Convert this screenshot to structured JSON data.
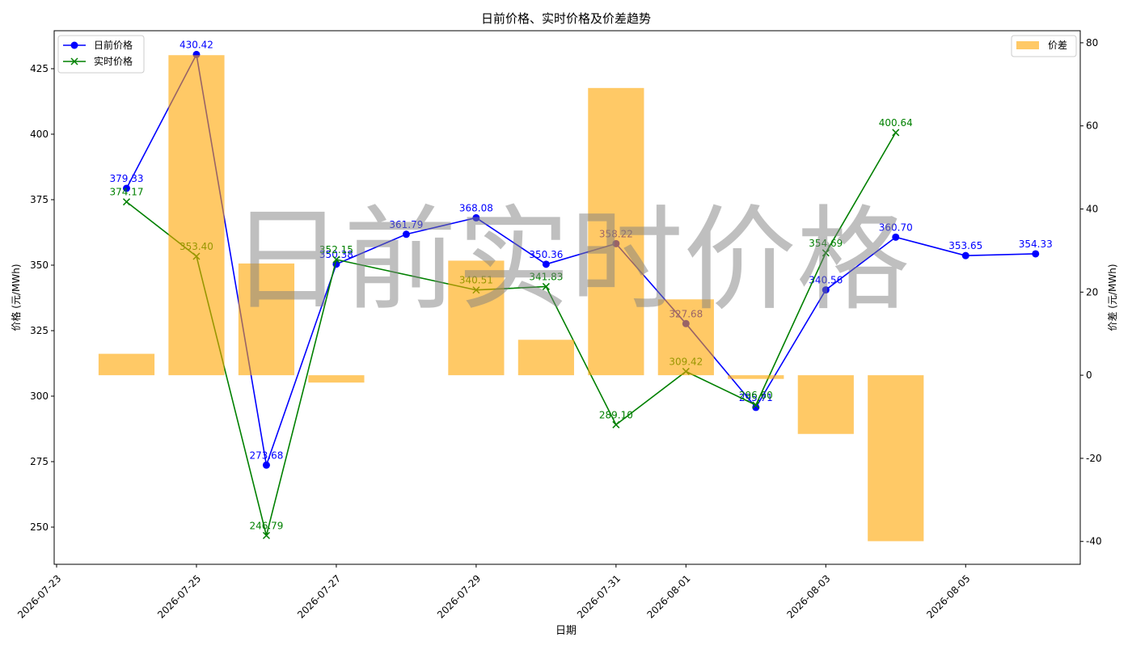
{
  "chart_data": {
    "type": "line-bar",
    "title": "日前价格、实时价格及价差趋势",
    "xlabel": "日期",
    "ylabel": "价格 (元/MWh)",
    "y2label": "价差 (元/MWh)",
    "watermark": "日前实时价格",
    "xlim": [
      "2026-07-22T23:10:00Z",
      "2026-08-06T15:20:00Z"
    ],
    "xticks": [
      "2026-07-23",
      "2026-07-25",
      "2026-07-27",
      "2026-07-29",
      "2026-07-31",
      "2026-08-01",
      "2026-08-03",
      "2026-08-05"
    ],
    "ylim": [
      235.8,
      439.5
    ],
    "yticks": [
      250,
      275,
      300,
      325,
      350,
      375,
      400,
      425
    ],
    "y2lim": [
      -45.5,
      82.9
    ],
    "y2ticks": [
      -40,
      -20,
      0,
      20,
      40,
      60,
      80
    ],
    "series": [
      {
        "name": "日前价格",
        "color": "#0000ff",
        "kind": "line",
        "marker": "o",
        "x": [
          "2026-07-24",
          "2026-07-25",
          "2026-07-26",
          "2026-07-27",
          "2026-07-28",
          "2026-07-29",
          "2026-07-30",
          "2026-07-31",
          "2026-08-01",
          "2026-08-02",
          "2026-08-03",
          "2026-08-04",
          "2026-08-05",
          "2026-08-06"
        ],
        "values": [
          379.33,
          430.42,
          273.68,
          350.38,
          361.79,
          368.08,
          350.36,
          358.22,
          327.68,
          295.71,
          340.56,
          360.7,
          353.65,
          354.33
        ],
        "value_labels": [
          "379.33",
          "430.42",
          "273.68",
          "350.38",
          "361.79",
          "368.08",
          "350.36",
          "358.22",
          "327.68",
          "295.71",
          "340.56",
          "360.70",
          "353.65",
          "354.33"
        ]
      },
      {
        "name": "实时价格",
        "color": "#008000",
        "kind": "line",
        "marker": "x",
        "x": [
          "2026-07-24",
          "2026-07-25",
          "2026-07-26",
          "2026-07-27",
          "2026-07-29",
          "2026-07-30",
          "2026-07-31",
          "2026-08-01",
          "2026-08-02",
          "2026-08-03",
          "2026-08-04"
        ],
        "values": [
          374.17,
          353.4,
          246.79,
          352.15,
          340.51,
          341.83,
          289.1,
          309.42,
          296.6,
          354.69,
          400.64
        ],
        "value_labels": [
          "374.17",
          "353.40",
          "246.79",
          "352.15",
          "340.51",
          "341.83",
          "289.10",
          "309.42",
          "296.60",
          "354.69",
          "400.64"
        ]
      },
      {
        "name": "价差",
        "color": "#ffa500",
        "kind": "bar",
        "axis": "y2",
        "x": [
          "2026-07-24",
          "2026-07-25",
          "2026-07-26",
          "2026-07-27",
          "2026-07-29",
          "2026-07-30",
          "2026-07-31",
          "2026-08-01",
          "2026-08-02",
          "2026-08-03",
          "2026-08-04"
        ],
        "values": [
          5.16,
          77.02,
          26.89,
          -1.77,
          27.57,
          8.53,
          69.12,
          18.26,
          -0.89,
          -14.13,
          -39.94
        ]
      }
    ]
  }
}
